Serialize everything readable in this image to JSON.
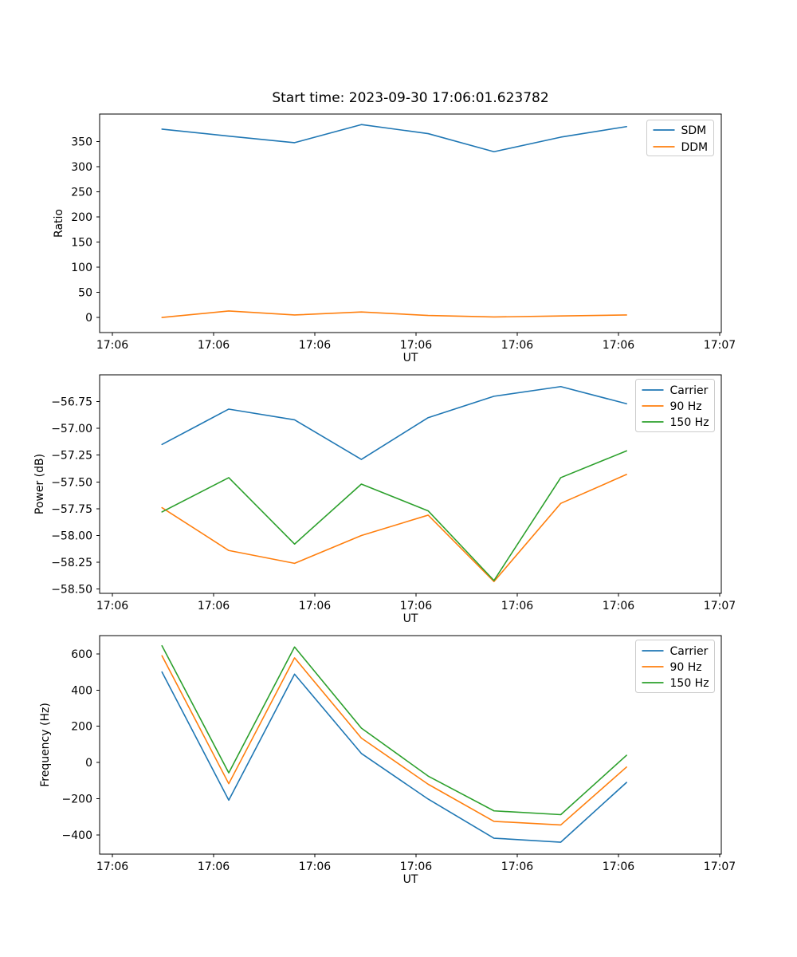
{
  "figure": {
    "title": "Start time: 2023-09-30 17:06:01.623782",
    "background": "#ffffff",
    "palette": {
      "blue": "#1f77b4",
      "orange": "#ff7f0e",
      "green": "#2ca02c"
    },
    "legend_border": "#cccccc"
  },
  "chart_data": [
    {
      "type": "line",
      "title": "Start time: 2023-09-30 17:06:01.623782",
      "xlabel": "UT",
      "ylabel": "Ratio",
      "grid": false,
      "legend_position": "upper right",
      "x_seconds_after_17_06": [
        4.9,
        11.5,
        18.0,
        24.6,
        31.2,
        37.7,
        44.3,
        50.8
      ],
      "xlim_seconds": [
        -1.26,
        60.16
      ],
      "xticks_seconds": [
        0,
        10,
        20,
        30,
        40,
        50,
        60
      ],
      "xtick_labels": [
        "17:06",
        "17:06",
        "17:06",
        "17:06",
        "17:06",
        "17:06",
        "17:07"
      ],
      "ylim": [
        -30,
        405
      ],
      "yticks": [
        0,
        50,
        100,
        150,
        200,
        250,
        300,
        350
      ],
      "ytick_labels": [
        "0",
        "50",
        "100",
        "150",
        "200",
        "250",
        "300",
        "350"
      ],
      "series": [
        {
          "name": "SDM",
          "color": "#1f77b4",
          "values": [
            375,
            361,
            348,
            384,
            366,
            330,
            359,
            380
          ]
        },
        {
          "name": "DDM",
          "color": "#ff7f0e",
          "values": [
            0,
            13,
            5,
            11,
            4,
            1,
            3,
            5
          ]
        }
      ]
    },
    {
      "type": "line",
      "title": "",
      "xlabel": "UT",
      "ylabel": "Power (dB)",
      "grid": false,
      "legend_position": "upper right",
      "x_seconds_after_17_06": [
        4.9,
        11.5,
        18.0,
        24.6,
        31.2,
        37.7,
        44.3,
        50.8
      ],
      "xlim_seconds": [
        -1.26,
        60.16
      ],
      "xticks_seconds": [
        0,
        10,
        20,
        30,
        40,
        50,
        60
      ],
      "xtick_labels": [
        "17:06",
        "17:06",
        "17:06",
        "17:06",
        "17:06",
        "17:06",
        "17:07"
      ],
      "ylim": [
        -58.54,
        -56.5
      ],
      "yticks": [
        -58.5,
        -58.25,
        -58.0,
        -57.75,
        -57.5,
        -57.25,
        -57.0,
        -56.75
      ],
      "ytick_labels": [
        "−58.50",
        "−58.25",
        "−58.00",
        "−57.75",
        "−57.50",
        "−57.25",
        "−57.00",
        "−56.75"
      ],
      "series": [
        {
          "name": "Carrier",
          "color": "#1f77b4",
          "values": [
            -57.15,
            -56.82,
            -56.92,
            -57.29,
            -56.9,
            -56.7,
            -56.61,
            -56.77
          ]
        },
        {
          "name": "90 Hz",
          "color": "#ff7f0e",
          "values": [
            -57.74,
            -58.14,
            -58.26,
            -58.0,
            -57.81,
            -58.43,
            -57.7,
            -57.43
          ]
        },
        {
          "name": "150 Hz",
          "color": "#2ca02c",
          "values": [
            -57.78,
            -57.46,
            -58.08,
            -57.52,
            -57.77,
            -58.42,
            -57.46,
            -57.21
          ]
        }
      ]
    },
    {
      "type": "line",
      "title": "",
      "xlabel": "UT",
      "ylabel": "Frequency (Hz)",
      "grid": false,
      "legend_position": "upper right",
      "x_seconds_after_17_06": [
        4.9,
        11.5,
        18.0,
        24.6,
        31.2,
        37.7,
        44.3,
        50.8
      ],
      "xlim_seconds": [
        -1.26,
        60.16
      ],
      "xticks_seconds": [
        0,
        10,
        20,
        30,
        40,
        50,
        60
      ],
      "xtick_labels": [
        "17:06",
        "17:06",
        "17:06",
        "17:06",
        "17:06",
        "17:06",
        "17:07"
      ],
      "ylim": [
        -506,
        701
      ],
      "yticks": [
        -400,
        -200,
        0,
        200,
        400,
        600
      ],
      "ytick_labels": [
        "−400",
        "−200",
        "0",
        "200",
        "400",
        "600"
      ],
      "series": [
        {
          "name": "Carrier",
          "color": "#1f77b4",
          "values": [
            500,
            -208,
            488,
            50,
            -202,
            -418,
            -440,
            -110
          ]
        },
        {
          "name": "90 Hz",
          "color": "#ff7f0e",
          "values": [
            590,
            -117,
            578,
            135,
            -120,
            -325,
            -345,
            -25
          ]
        },
        {
          "name": "150 Hz",
          "color": "#2ca02c",
          "values": [
            645,
            -57,
            638,
            190,
            -75,
            -267,
            -288,
            40
          ]
        }
      ]
    }
  ]
}
